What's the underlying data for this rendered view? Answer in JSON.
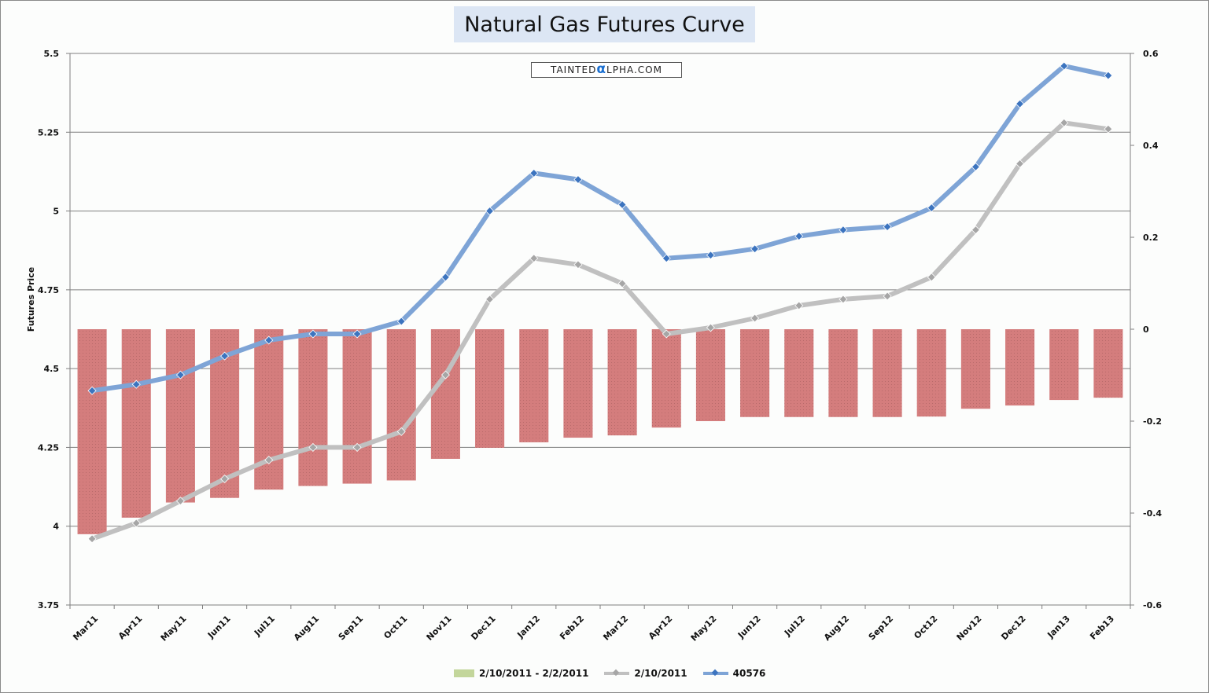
{
  "chart_data": {
    "type": "bar+line",
    "title": "Natural Gas Futures Curve",
    "watermark": "TAINTEDαLPHA.COM",
    "xlabel": "",
    "ylabel": "Futures Price",
    "y2label": "",
    "ylim": [
      3.75,
      5.5
    ],
    "y2lim": [
      -0.6,
      0.6
    ],
    "yticks": [
      "5.5",
      "5.25",
      "5",
      "4.75",
      "4.5",
      "4.25",
      "4",
      "3.75"
    ],
    "y2ticks": [
      "0.6",
      "0.4",
      "0.2",
      "0",
      "-0.2",
      "-0.4",
      "-0.6"
    ],
    "grid": true,
    "legend_position": "bottom",
    "categories": [
      "Mar11",
      "Apr11",
      "May11",
      "Jun11",
      "Jul11",
      "Aug11",
      "Sep11",
      "Oct11",
      "Nov11",
      "Dec11",
      "Jan12",
      "Feb12",
      "Mar12",
      "Apr12",
      "May12",
      "Jun12",
      "Jul12",
      "Aug12",
      "Sep12",
      "Oct12",
      "Nov12",
      "Dec12",
      "Jan13",
      "Feb13"
    ],
    "series": [
      {
        "name": "2/10/2011 - 2/2/2011",
        "type": "bar",
        "axis": "right",
        "color": "#d47d7d",
        "legend_color": "#c3d69b",
        "values": [
          -0.446,
          -0.41,
          -0.377,
          -0.367,
          -0.349,
          -0.341,
          -0.336,
          -0.329,
          -0.282,
          -0.258,
          -0.246,
          -0.236,
          -0.231,
          -0.214,
          -0.2,
          -0.191,
          -0.191,
          -0.191,
          -0.191,
          -0.19,
          -0.173,
          -0.166,
          -0.154,
          -0.149
        ]
      },
      {
        "name": "2/10/2011",
        "type": "line",
        "axis": "left",
        "color": "#c0c0c0",
        "marker_color": "#a6a6a6",
        "values": [
          3.96,
          4.01,
          4.08,
          4.15,
          4.21,
          4.25,
          4.25,
          4.3,
          4.48,
          4.72,
          4.85,
          4.83,
          4.77,
          4.61,
          4.63,
          4.66,
          4.7,
          4.72,
          4.73,
          4.79,
          4.94,
          5.15,
          5.28,
          5.26
        ]
      },
      {
        "name": "40576",
        "type": "line",
        "axis": "left",
        "color": "#7ea4d6",
        "marker_color": "#3c74bf",
        "values": [
          4.43,
          4.45,
          4.48,
          4.54,
          4.59,
          4.61,
          4.61,
          4.65,
          4.79,
          5.0,
          5.12,
          5.1,
          5.02,
          4.85,
          4.86,
          4.88,
          4.92,
          4.94,
          4.95,
          5.01,
          5.14,
          5.34,
          5.46,
          5.43
        ]
      }
    ]
  }
}
